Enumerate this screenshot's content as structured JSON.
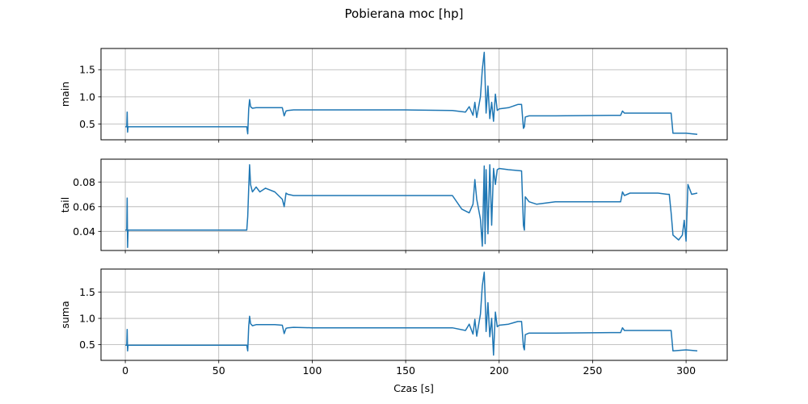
{
  "figure": {
    "title": "Pobierana moc [hp]",
    "xlabel": "Czas [s]",
    "series_color": "#1f77b4",
    "grid_color": "#b0b0b0",
    "x_ticks": [
      0,
      50,
      100,
      150,
      200,
      250,
      300
    ],
    "x_tick_labels": [
      "0",
      "50",
      "100",
      "150",
      "200",
      "250",
      "300"
    ]
  },
  "chart_data": [
    {
      "type": "line",
      "ylabel": "main",
      "xlim": [
        -13,
        322
      ],
      "ylim": [
        0.21,
        1.89
      ],
      "grid": true,
      "y_ticks": [
        0.5,
        1.0,
        1.5
      ],
      "y_tick_labels": [
        "0.5",
        "1.0",
        "1.5"
      ],
      "x": [
        0,
        0.8,
        1.0,
        1.2,
        1.5,
        65,
        65.5,
        66,
        66.5,
        67,
        68,
        70,
        80,
        84,
        85,
        86,
        87,
        90,
        100,
        150,
        175,
        182,
        184,
        186,
        187,
        188,
        190,
        191,
        192,
        192.5,
        193,
        194,
        195,
        196,
        197,
        198,
        199,
        200,
        205,
        210,
        212,
        213,
        213.5,
        214,
        216,
        230,
        260,
        265,
        266,
        267,
        270,
        285,
        291,
        292,
        293,
        300,
        306
      ],
      "values": [
        0.45,
        0.45,
        0.72,
        0.35,
        0.45,
        0.45,
        0.32,
        0.78,
        0.95,
        0.82,
        0.79,
        0.8,
        0.8,
        0.8,
        0.65,
        0.74,
        0.75,
        0.76,
        0.76,
        0.76,
        0.75,
        0.72,
        0.82,
        0.66,
        0.9,
        0.62,
        1.0,
        1.5,
        1.82,
        1.3,
        0.7,
        1.2,
        0.6,
        0.9,
        0.55,
        1.05,
        0.75,
        0.78,
        0.8,
        0.86,
        0.86,
        0.42,
        0.45,
        0.63,
        0.65,
        0.65,
        0.66,
        0.66,
        0.74,
        0.7,
        0.7,
        0.7,
        0.7,
        0.7,
        0.33,
        0.33,
        0.31
      ]
    },
    {
      "type": "line",
      "ylabel": "tail",
      "xlim": [
        -13,
        322
      ],
      "ylim": [
        0.0245,
        0.0985
      ],
      "grid": true,
      "y_ticks": [
        0.04,
        0.06,
        0.08
      ],
      "y_tick_labels": [
        "0.04",
        "0.06",
        "0.08"
      ],
      "x": [
        0,
        0.8,
        1.0,
        1.2,
        1.5,
        65,
        65.5,
        66,
        66.5,
        67,
        68,
        70,
        72,
        75,
        80,
        84,
        85,
        86,
        87,
        90,
        100,
        150,
        175,
        180,
        184,
        186,
        187,
        188,
        190,
        191,
        192,
        192.5,
        193,
        194,
        195,
        196,
        197,
        198,
        199,
        200,
        205,
        212,
        213,
        213.5,
        214,
        216,
        220,
        230,
        260,
        265,
        266,
        267,
        270,
        285,
        290,
        291,
        292,
        293,
        296,
        298,
        299,
        300,
        301,
        303,
        306
      ],
      "values": [
        0.041,
        0.041,
        0.067,
        0.027,
        0.041,
        0.041,
        0.052,
        0.075,
        0.094,
        0.078,
        0.072,
        0.076,
        0.072,
        0.075,
        0.072,
        0.066,
        0.06,
        0.071,
        0.07,
        0.069,
        0.069,
        0.069,
        0.069,
        0.058,
        0.055,
        0.062,
        0.082,
        0.066,
        0.05,
        0.028,
        0.093,
        0.03,
        0.09,
        0.038,
        0.094,
        0.045,
        0.091,
        0.078,
        0.09,
        0.091,
        0.09,
        0.089,
        0.045,
        0.041,
        0.068,
        0.064,
        0.062,
        0.064,
        0.064,
        0.064,
        0.072,
        0.069,
        0.071,
        0.071,
        0.07,
        0.07,
        0.055,
        0.037,
        0.033,
        0.037,
        0.049,
        0.032,
        0.078,
        0.07,
        0.071
      ]
    },
    {
      "type": "line",
      "ylabel": "suma",
      "xlim": [
        -13,
        322
      ],
      "ylim": [
        0.2,
        1.94
      ],
      "grid": true,
      "y_ticks": [
        0.5,
        1.0,
        1.5
      ],
      "y_tick_labels": [
        "0.5",
        "1.0",
        "1.5"
      ],
      "x": [
        0,
        0.8,
        1.0,
        1.2,
        1.5,
        65,
        65.5,
        66,
        66.5,
        67,
        68,
        70,
        80,
        84,
        85,
        86,
        87,
        90,
        100,
        150,
        175,
        182,
        184,
        186,
        187,
        188,
        190,
        191,
        192,
        192.5,
        193,
        194,
        195,
        196,
        197,
        198,
        199,
        200,
        205,
        210,
        212,
        213,
        213.5,
        214,
        216,
        230,
        260,
        265,
        266,
        267,
        270,
        285,
        291,
        292,
        293,
        300,
        306
      ],
      "values": [
        0.49,
        0.49,
        0.79,
        0.38,
        0.49,
        0.49,
        0.38,
        0.85,
        1.04,
        0.9,
        0.86,
        0.88,
        0.88,
        0.87,
        0.71,
        0.81,
        0.82,
        0.83,
        0.82,
        0.82,
        0.82,
        0.77,
        0.89,
        0.7,
        0.98,
        0.66,
        1.08,
        1.62,
        1.88,
        1.4,
        0.75,
        1.3,
        0.65,
        1.0,
        0.3,
        1.12,
        0.84,
        0.87,
        0.89,
        0.94,
        0.94,
        0.46,
        0.4,
        0.69,
        0.72,
        0.72,
        0.73,
        0.73,
        0.82,
        0.77,
        0.77,
        0.77,
        0.77,
        0.77,
        0.38,
        0.4,
        0.38
      ]
    }
  ]
}
